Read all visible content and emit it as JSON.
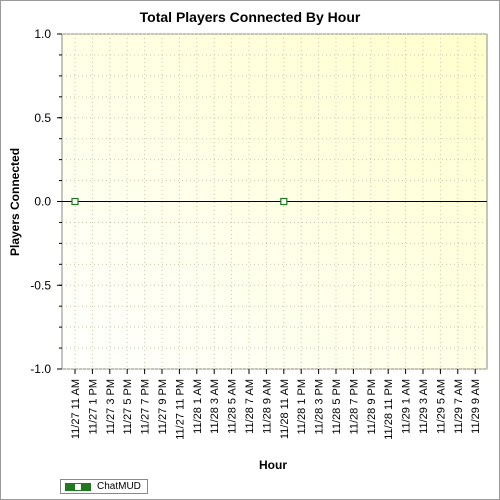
{
  "chart_data": {
    "type": "line",
    "title": "Total Players Connected By Hour",
    "xlabel": "Hour",
    "ylabel": "Players Connected",
    "categories": [
      "11/27 11 AM",
      "11/27 1 PM",
      "11/27 3 PM",
      "11/27 5 PM",
      "11/27 7 PM",
      "11/27 9 PM",
      "11/27 11 PM",
      "11/28 1 AM",
      "11/28 3 AM",
      "11/28 5 AM",
      "11/28 7 AM",
      "11/28 9 AM",
      "11/28 11 AM",
      "11/28 1 PM",
      "11/28 3 PM",
      "11/28 5 PM",
      "11/28 7 PM",
      "11/28 9 PM",
      "11/28 11 PM",
      "11/29 1 AM",
      "11/29 3 AM",
      "11/29 5 AM",
      "11/29 7 AM",
      "11/29 9 AM"
    ],
    "yticks": [
      "1.0",
      "0.5",
      "0.0",
      "-0.5",
      "-1.0"
    ],
    "ylim": [
      -1.0,
      1.0
    ],
    "grid": true,
    "legend_position": "bottom-left",
    "series": [
      {
        "name": "ChatMUD",
        "color": "#1f7a1f",
        "points": [
          {
            "x": "11/27 11 AM",
            "y": 0
          },
          {
            "x": "11/28 11 AM",
            "y": 0
          }
        ]
      }
    ]
  }
}
